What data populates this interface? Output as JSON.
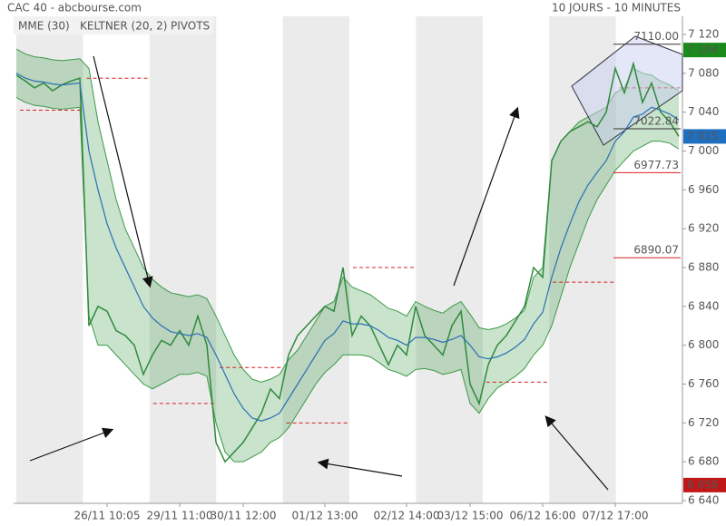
{
  "chart_data": {
    "type": "line",
    "title": "CAC 40 - abcbourse.com",
    "subtitle": "10 JOURS - 10 MINUTES",
    "categories": [
      null,
      null,
      null,
      null,
      null,
      null,
      null,
      null,
      null,
      null,
      "26/11 10:05",
      null,
      null,
      null,
      null,
      null,
      null,
      null,
      "29/11 11:00",
      null,
      null,
      null,
      null,
      null,
      null,
      "30/11 12:00",
      null,
      null,
      null,
      null,
      null,
      null,
      null,
      null,
      "01/12 13:00",
      null,
      null,
      null,
      null,
      null,
      null,
      null,
      null,
      "02/12 14:00",
      null,
      null,
      null,
      null,
      null,
      null,
      "03/12 15:00",
      null,
      null,
      null,
      null,
      null,
      null,
      null,
      "06/12 16:00",
      null,
      null,
      null,
      null,
      null,
      null,
      null,
      "07/12 17:00",
      null,
      null,
      null,
      null,
      null,
      null,
      null
    ],
    "values": [
      7078,
      7072,
      7065,
      7070,
      7062,
      7068,
      7072,
      7075,
      6820,
      6840,
      6835,
      6815,
      6810,
      6800,
      6770,
      6790,
      6805,
      6800,
      6815,
      6800,
      6830,
      6800,
      6700,
      6680,
      6690,
      6700,
      6715,
      6730,
      6755,
      6745,
      6790,
      6810,
      6820,
      6830,
      6840,
      6835,
      6880,
      6810,
      6830,
      6820,
      6800,
      6780,
      6800,
      6790,
      6840,
      6810,
      6800,
      6790,
      6820,
      6835,
      6760,
      6740,
      6780,
      6800,
      6810,
      6825,
      6840,
      6880,
      6870,
      6990,
      7010,
      7020,
      7025,
      7030,
      7025,
      7040,
      7085,
      7060,
      7090,
      7050,
      7070,
      7040,
      7030,
      7015
    ],
    "color": "#2f8a3c",
    "series": [
      {
        "name": "MME (30)",
        "color": "#2a6fb5",
        "values": [
          7080,
          7075,
          7072,
          7071,
          7069,
          7068,
          7069,
          7070,
          7000,
          6960,
          6925,
          6900,
          6880,
          6860,
          6840,
          6828,
          6820,
          6814,
          6812,
          6810,
          6812,
          6808,
          6790,
          6770,
          6750,
          6735,
          6725,
          6722,
          6725,
          6730,
          6745,
          6760,
          6775,
          6790,
          6805,
          6812,
          6825,
          6822,
          6822,
          6820,
          6815,
          6808,
          6805,
          6800,
          6808,
          6808,
          6806,
          6803,
          6806,
          6810,
          6800,
          6788,
          6786,
          6788,
          6792,
          6798,
          6806,
          6822,
          6834,
          6870,
          6900,
          6925,
          6948,
          6965,
          6978,
          6990,
          7010,
          7020,
          7035,
          7038,
          7045,
          7042,
          7038,
          7032
        ]
      }
    ],
    "keltner": {
      "name": "KELTNER (20, 2)",
      "color": "#3c9a48",
      "upper": [
        7105,
        7100,
        7097,
        7096,
        7094,
        7093,
        7094,
        7095,
        7085,
        7030,
        6990,
        6950,
        6920,
        6900,
        6880,
        6868,
        6860,
        6854,
        6852,
        6850,
        6852,
        6848,
        6830,
        6810,
        6790,
        6775,
        6765,
        6762,
        6765,
        6770,
        6785,
        6795,
        6810,
        6825,
        6840,
        6845,
        6870,
        6860,
        6856,
        6852,
        6845,
        6838,
        6835,
        6830,
        6845,
        6840,
        6836,
        6833,
        6840,
        6845,
        6832,
        6818,
        6816,
        6818,
        6822,
        6828,
        6836,
        6870,
        6880,
        6990,
        7010,
        7020,
        7030,
        7035,
        7040,
        7045,
        7060,
        7065,
        7085,
        7080,
        7078,
        7072,
        7068,
        7062
      ],
      "lower": [
        7055,
        7050,
        7047,
        7046,
        7044,
        7043,
        7044,
        7045,
        6830,
        6800,
        6800,
        6790,
        6780,
        6770,
        6760,
        6755,
        6760,
        6765,
        6770,
        6770,
        6772,
        6768,
        6720,
        6690,
        6680,
        6680,
        6685,
        6690,
        6700,
        6705,
        6715,
        6730,
        6745,
        6760,
        6772,
        6780,
        6790,
        6790,
        6790,
        6788,
        6782,
        6775,
        6772,
        6768,
        6775,
        6776,
        6774,
        6770,
        6772,
        6775,
        6740,
        6730,
        6745,
        6756,
        6762,
        6768,
        6776,
        6790,
        6800,
        6820,
        6850,
        6880,
        6905,
        6930,
        6950,
        6965,
        6980,
        6990,
        7000,
        7005,
        7010,
        7010,
        7008,
        7002
      ]
    },
    "pivots": {
      "name": "PIVOTS",
      "color": "#d62020",
      "values": [
        7042,
        7075,
        6740,
        6777,
        6720,
        6880,
        null,
        6762,
        6865,
        7065
      ]
    },
    "annotations": [
      6977.73,
      6890.07,
      {
        "value": 7110,
        "label": "7110.00"
      },
      7022.84
    ],
    "price_tags": [
      {
        "value": 7104,
        "label": "7 104",
        "color": "#1a8a1a"
      },
      {
        "value": 7015,
        "label": "7 015",
        "color": "#1f6fc0"
      },
      {
        "value": 6656,
        "label": "6 656",
        "color": "#c01818"
      }
    ],
    "ylim": [
      6640,
      7120
    ],
    "yticks": [
      {
        "value": 6640,
        "label": "6 640"
      },
      {
        "value": 6680,
        "label": "6 680"
      },
      {
        "value": 6720,
        "label": "6 720"
      },
      {
        "value": 6760,
        "label": "6 760"
      },
      {
        "value": 6800,
        "label": "6 800"
      },
      {
        "value": 6840,
        "label": "6 840"
      },
      {
        "value": 6880,
        "label": "6 880"
      },
      {
        "value": 6920,
        "label": "6 920"
      },
      {
        "value": 6960,
        "label": "6 960"
      },
      {
        "value": 7000,
        "label": "7 000"
      },
      {
        "value": 7040,
        "label": "7 040"
      },
      {
        "value": 7080,
        "label": "7 080"
      },
      {
        "value": 7120,
        "label": "7 120"
      }
    ]
  }
}
